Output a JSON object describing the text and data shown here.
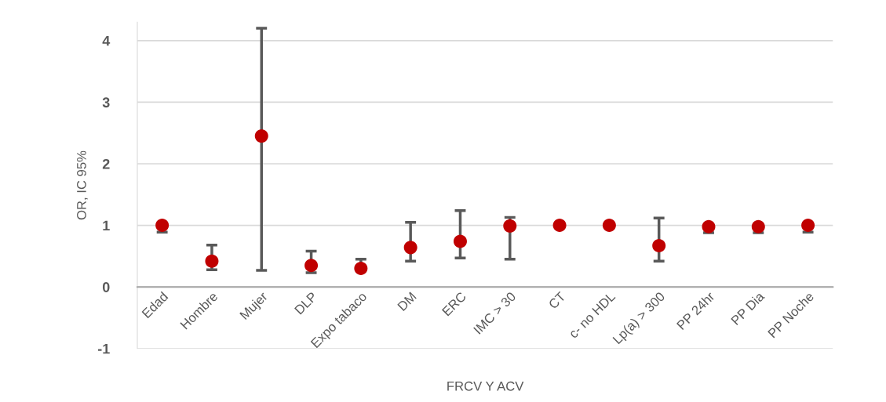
{
  "chart_data": {
    "type": "scatter",
    "xlabel": "FRCV Y ACV",
    "ylabel": "OR, IC 95%",
    "categories": [
      "Edad",
      "Hombre",
      "Mujer",
      "DLP",
      "Expo tabaco",
      "DM",
      "ERC",
      "IMC > 30",
      "CT",
      "c- no HDL",
      "Lp(a) > 300",
      "PP 24hr",
      "PP Dia",
      "PP Noche"
    ],
    "series": [
      {
        "color": "#c00000",
        "values": [
          1.0,
          0.42,
          2.45,
          0.35,
          0.3,
          0.64,
          0.74,
          0.99,
          1.0,
          1.0,
          0.67,
          0.98,
          0.98,
          1.0
        ],
        "errors": [
          [
            0.89,
            1.0
          ],
          [
            0.28,
            0.68
          ],
          [
            0.27,
            4.2
          ],
          [
            0.23,
            0.58
          ],
          [
            0.3,
            0.45
          ],
          [
            0.42,
            1.05
          ],
          [
            0.47,
            1.24
          ],
          [
            0.45,
            1.13
          ],
          null,
          null,
          [
            0.42,
            1.12
          ],
          [
            0.88,
            0.98
          ],
          [
            0.88,
            0.98
          ],
          [
            0.89,
            1.0
          ]
        ]
      }
    ],
    "ylim": [
      -1,
      4.3
    ],
    "yticks": [
      -1,
      0,
      1,
      2,
      3,
      4
    ],
    "grid": "y",
    "marker": "circle"
  }
}
